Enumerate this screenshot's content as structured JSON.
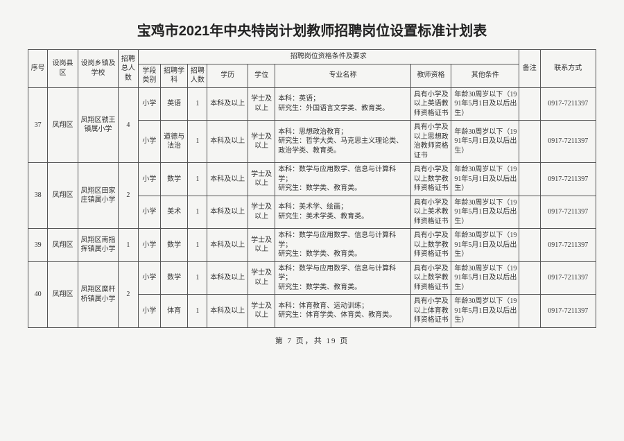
{
  "title": "宝鸡市2021年中央特岗计划教师招聘岗位设置标准计划表",
  "headers": {
    "seq": "序号",
    "county": "设岗县区",
    "school": "设岗乡镇及学校",
    "total": "招聘总人数",
    "reqGroup": "招聘岗位资格条件及要求",
    "stage": "学段类别",
    "subject": "招聘学科",
    "count": "招聘人数",
    "edu": "学历",
    "degree": "学位",
    "major": "专业名称",
    "cert": "教师资格",
    "other": "其他条件",
    "remark": "备注",
    "contact": "联系方式"
  },
  "widths": {
    "seq": 26,
    "county": 40,
    "school": 54,
    "total": 26,
    "stage": 30,
    "subject": 36,
    "count": 26,
    "edu": 54,
    "degree": 36,
    "major": 180,
    "cert": 54,
    "other": 90,
    "remark": 28,
    "contact": 74
  },
  "groups": [
    {
      "seq": "37",
      "county": "凤翔区",
      "school": "凤翔区虢王镇属小学",
      "total": "4",
      "rows": [
        {
          "stage": "小学",
          "subject": "英语",
          "count": "1",
          "edu": "本科及以上",
          "degree": "学士及以上",
          "major": "本科：英语；\n研究生：外国语言文学类、教育类。",
          "cert": "具有小学及以上英语教师资格证书",
          "other": "年龄30周岁以下（1991年5月1日及以后出生）",
          "remark": "",
          "contact": "0917-7211397"
        },
        {
          "stage": "小学",
          "subject": "道德与法治",
          "count": "1",
          "edu": "本科及以上",
          "degree": "学士及以上",
          "major": "本科：思想政治教育；\n研究生：哲学大类、马克思主义理论类、政治学类、教育类。",
          "cert": "具有小学及以上思想政治教师资格证书",
          "other": "年龄30周岁以下（1991年5月1日及以后出生）",
          "remark": "",
          "contact": "0917-7211397"
        }
      ]
    },
    {
      "seq": "38",
      "county": "凤翔区",
      "school": "凤翔区田家庄镇属小学",
      "total": "2",
      "rows": [
        {
          "stage": "小学",
          "subject": "数学",
          "count": "1",
          "edu": "本科及以上",
          "degree": "学士及以上",
          "major": "本科：数学与应用数学、信息与计算科学；\n研究生：数学类、教育类。",
          "cert": "具有小学及以上数学教师资格证书",
          "other": "年龄30周岁以下（1991年5月1日及以后出生）",
          "remark": "",
          "contact": "0917-7211397"
        },
        {
          "stage": "小学",
          "subject": "美术",
          "count": "1",
          "edu": "本科及以上",
          "degree": "学士及以上",
          "major": "本科：美术学、绘画；\n研究生：美术学类、教育类。",
          "cert": "具有小学及以上美术教师资格证书",
          "other": "年龄30周岁以下（1991年5月1日及以后出生）",
          "remark": "",
          "contact": "0917-7211397"
        }
      ]
    },
    {
      "seq": "39",
      "county": "凤翔区",
      "school": "凤翔区南指挥镇属小学",
      "total": "1",
      "rows": [
        {
          "stage": "小学",
          "subject": "数学",
          "count": "1",
          "edu": "本科及以上",
          "degree": "学士及以上",
          "major": "本科：数学与应用数学、信息与计算科学；\n研究生：数学类、教育类。",
          "cert": "具有小学及以上数学教师资格证书",
          "other": "年龄30周岁以下（1991年5月1日及以后出生）",
          "remark": "",
          "contact": "0917-7211397"
        }
      ]
    },
    {
      "seq": "40",
      "county": "凤翔区",
      "school": "凤翔区糜杆桥镇属小学",
      "total": "2",
      "rows": [
        {
          "stage": "小学",
          "subject": "数学",
          "count": "1",
          "edu": "本科及以上",
          "degree": "学士及以上",
          "major": "本科：数学与应用数学、信息与计算科学；\n研究生：数学类、教育类。",
          "cert": "具有小学及以上数学教师资格证书",
          "other": "年龄30周岁以下（1991年5月1日及以后出生）",
          "remark": "",
          "contact": "0917-7211397"
        },
        {
          "stage": "小学",
          "subject": "体育",
          "count": "1",
          "edu": "本科及以上",
          "degree": "学士及以上",
          "major": "本科：体育教育、运动训练；\n研究生：体育学类、体育类、教育类。",
          "cert": "具有小学及以上体育教师资格证书",
          "other": "年龄30周岁以下（1991年5月1日及以后出生）",
          "remark": "",
          "contact": "0917-7211397"
        }
      ]
    }
  ],
  "footer": "第 7 页，共 19 页"
}
